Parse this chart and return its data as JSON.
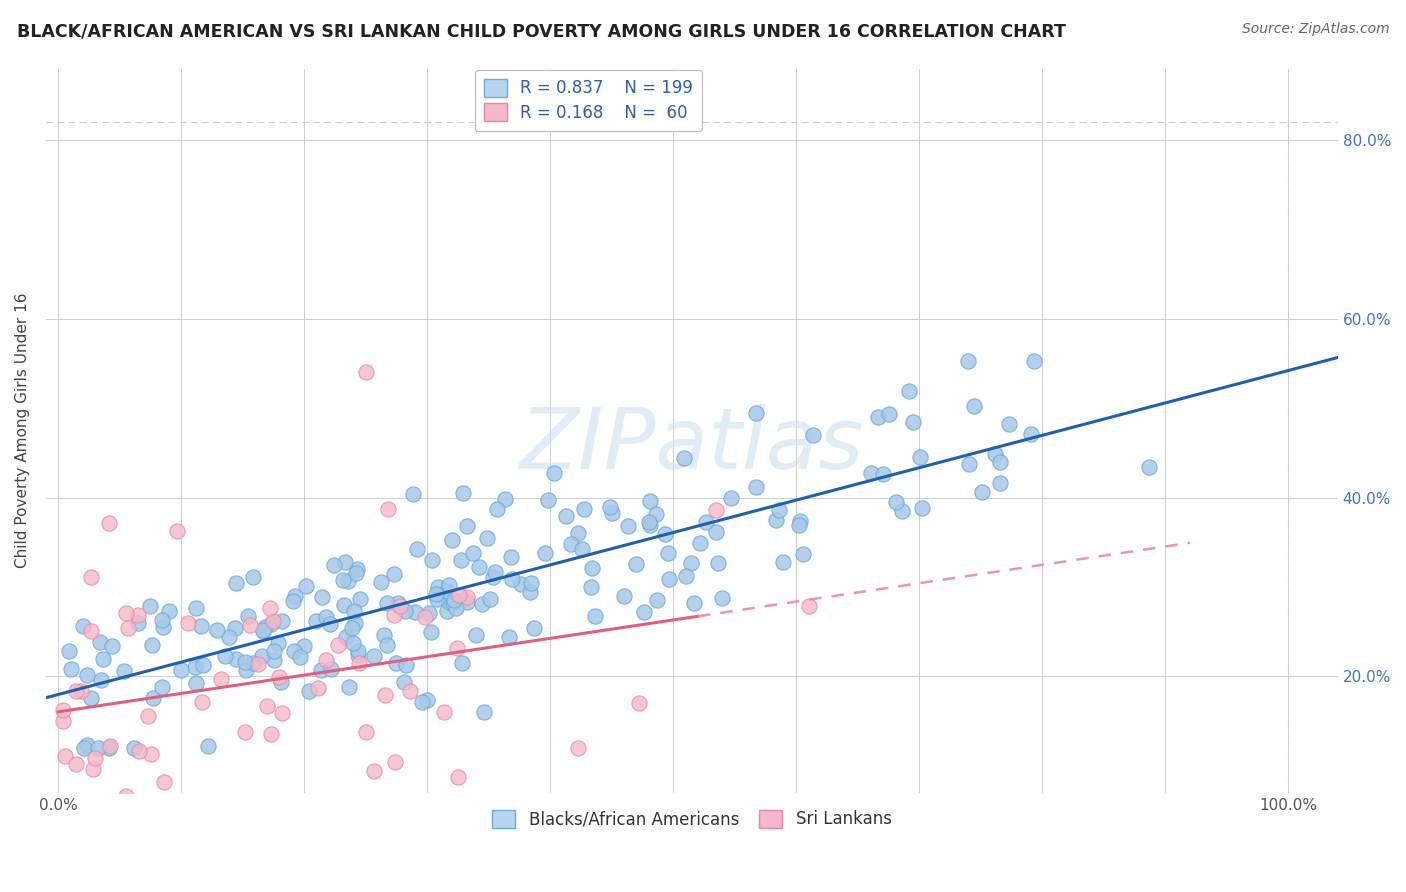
{
  "title": "BLACK/AFRICAN AMERICAN VS SRI LANKAN CHILD POVERTY AMONG GIRLS UNDER 16 CORRELATION CHART",
  "source_text": "Source: ZipAtlas.com",
  "ylabel": "Child Poverty Among Girls Under 16",
  "x_ticks": [
    0.0,
    0.1,
    0.2,
    0.3,
    0.4,
    0.5,
    0.6,
    0.7,
    0.8,
    0.9,
    1.0
  ],
  "y_ticks": [
    0.2,
    0.4,
    0.6,
    0.8
  ],
  "y_tick_labels": [
    "20.0%",
    "40.0%",
    "60.0%",
    "80.0%"
  ],
  "xlim": [
    -0.01,
    1.04
  ],
  "ylim": [
    0.07,
    0.88
  ],
  "blue_dot_color": "#a8c8e8",
  "blue_dot_edge": "#6aabe0",
  "pink_dot_color": "#f5b8c8",
  "pink_dot_edge": "#e888a8",
  "blue_line_color": "#2060b0",
  "pink_line_solid_color": "#e06080",
  "pink_line_dash_color": "#e898a8",
  "grid_color": "#d0d0d0",
  "grid_dash_color": "#cccccc",
  "background_color": "#ffffff",
  "legend_labels": [
    "Blacks/African Americans",
    "Sri Lankans"
  ],
  "R_blue": 0.837,
  "N_blue": 199,
  "R_pink": 0.168,
  "N_pink": 60,
  "title_fontsize": 12.5,
  "axis_label_fontsize": 11,
  "tick_fontsize": 11,
  "legend_fontsize": 12,
  "source_fontsize": 10,
  "watermark_text": "ZIPatlas"
}
